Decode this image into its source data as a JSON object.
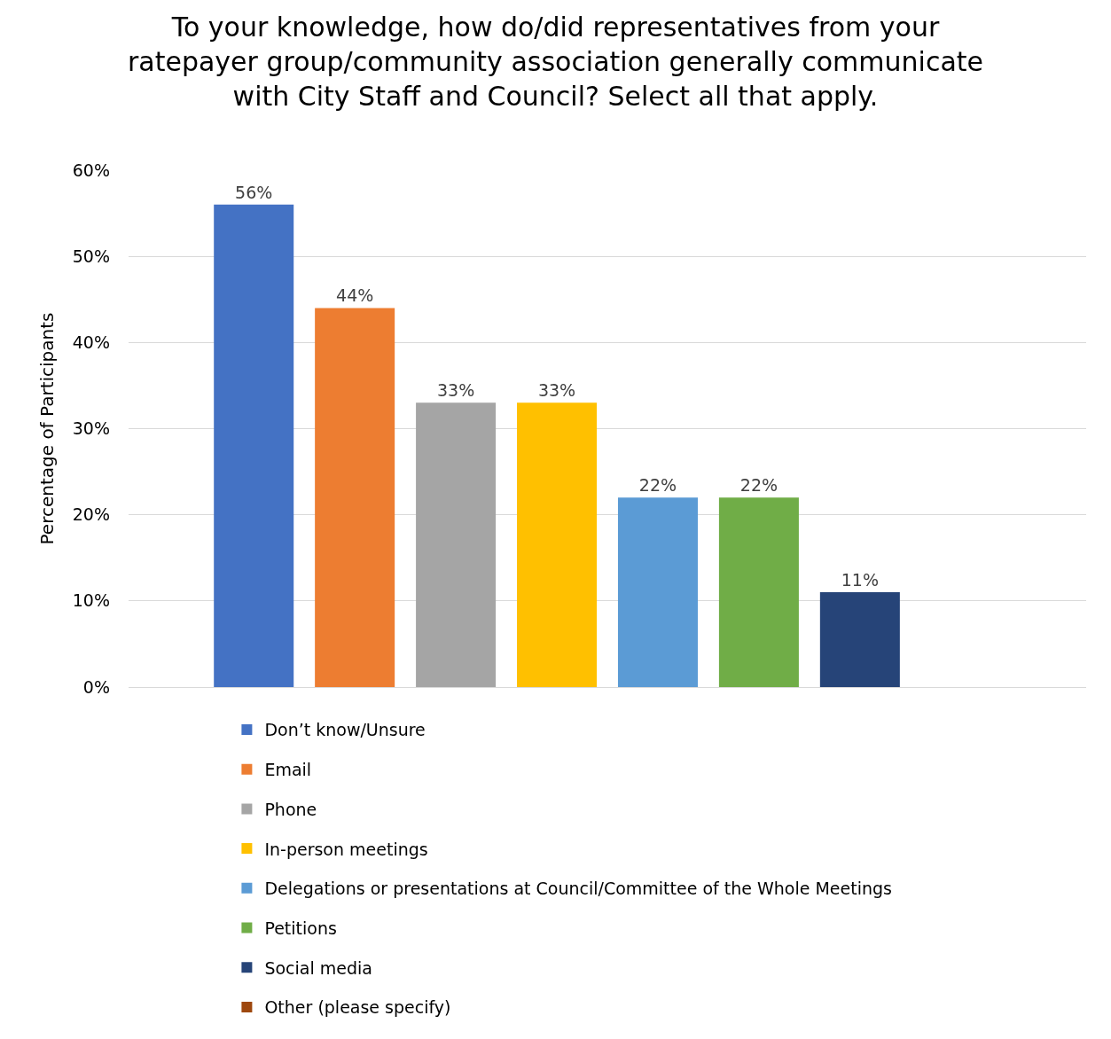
{
  "chart_data": {
    "type": "bar",
    "title": "To your knowledge, how do/did representatives from your ratepayer group/community association generally communicate with City Staff and Council? Select all that apply.",
    "ylabel": "Percentage of Participants",
    "categories": [
      null
    ],
    "series": [
      {
        "name": "Don’t know/Unsure",
        "color": "#4472c4",
        "values": [
          56
        ],
        "value_labels": [
          "56%"
        ]
      },
      {
        "name": "Email",
        "color": "#ed7d31",
        "values": [
          44
        ],
        "value_labels": [
          "44%"
        ]
      },
      {
        "name": "Phone",
        "color": "#a5a5a5",
        "values": [
          33
        ],
        "value_labels": [
          "33%"
        ]
      },
      {
        "name": "In-person meetings",
        "color": "#ffc000",
        "values": [
          33
        ],
        "value_labels": [
          "33%"
        ]
      },
      {
        "name": "Delegations or presentations at Council/Committee of the Whole Meetings",
        "color": "#5b9bd5",
        "values": [
          22
        ],
        "value_labels": [
          "22%"
        ]
      },
      {
        "name": "Petitions",
        "color": "#70ad47",
        "values": [
          22
        ],
        "value_labels": [
          "22%"
        ]
      },
      {
        "name": "Social media",
        "color": "#264478",
        "values": [
          11
        ],
        "value_labels": [
          "11%"
        ]
      },
      {
        "name": "Other (please specify)",
        "color": "#9e480e",
        "values": [
          null
        ],
        "value_labels": [
          null
        ]
      }
    ],
    "ylim": [
      0,
      60
    ],
    "yticks": [
      {
        "value": 0,
        "label": "0%"
      },
      {
        "value": 10,
        "label": "10%"
      },
      {
        "value": 20,
        "label": "20%"
      },
      {
        "value": 30,
        "label": "30%"
      },
      {
        "value": 40,
        "label": "40%"
      },
      {
        "value": 50,
        "label": "50%"
      },
      {
        "value": 60,
        "label": "60%"
      }
    ],
    "grid": "y",
    "legend": "bottom",
    "tick_labels": "y"
  }
}
